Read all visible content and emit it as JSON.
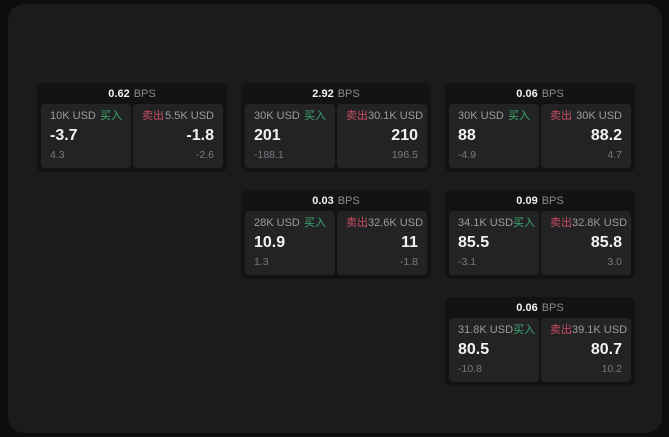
{
  "theme": {
    "page_bg": "#0d0d0e",
    "panel_bg": "#1b1b1d",
    "card_bg": "#131315",
    "tile_bg": "#232326",
    "buy_color": "#3fa96c",
    "sell_color": "#c94d62",
    "label_color": "#9c9c9e",
    "value_color": "#f2f2f3",
    "sub_color": "#7a7a7e",
    "bps_color": "#8b8b8e"
  },
  "labels": {
    "bps": "BPS",
    "buy": "买入",
    "sell": "卖出"
  },
  "cards": [
    {
      "row": 1,
      "col": 1,
      "bps": "0.62",
      "buy": {
        "amount": "10K USD",
        "value": "-3.7",
        "delta": "4.3"
      },
      "sell": {
        "amount": "5.5K USD",
        "value": "-1.8",
        "delta": "-2.6"
      }
    },
    {
      "row": 1,
      "col": 2,
      "bps": "2.92",
      "buy": {
        "amount": "30K USD",
        "value": "201",
        "delta": "-188.1"
      },
      "sell": {
        "amount": "30.1K USD",
        "value": "210",
        "delta": "196.5"
      }
    },
    {
      "row": 1,
      "col": 3,
      "bps": "0.06",
      "buy": {
        "amount": "30K USD",
        "value": "88",
        "delta": "-4.9"
      },
      "sell": {
        "amount": "30K USD",
        "value": "88.2",
        "delta": "4.7"
      }
    },
    {
      "row": 2,
      "col": 2,
      "bps": "0.03",
      "buy": {
        "amount": "28K USD",
        "value": "10.9",
        "delta": "1.3"
      },
      "sell": {
        "amount": "32.6K USD",
        "value": "11",
        "delta": "-1.8"
      }
    },
    {
      "row": 2,
      "col": 3,
      "bps": "0.09",
      "buy": {
        "amount": "34.1K USD",
        "value": "85.5",
        "delta": "-3.1"
      },
      "sell": {
        "amount": "32.8K USD",
        "value": "85.8",
        "delta": "3.0"
      }
    },
    {
      "row": 3,
      "col": 3,
      "bps": "0.06",
      "buy": {
        "amount": "31.8K USD",
        "value": "80.5",
        "delta": "-10.8"
      },
      "sell": {
        "amount": "39.1K USD",
        "value": "80.7",
        "delta": "10.2"
      }
    }
  ]
}
